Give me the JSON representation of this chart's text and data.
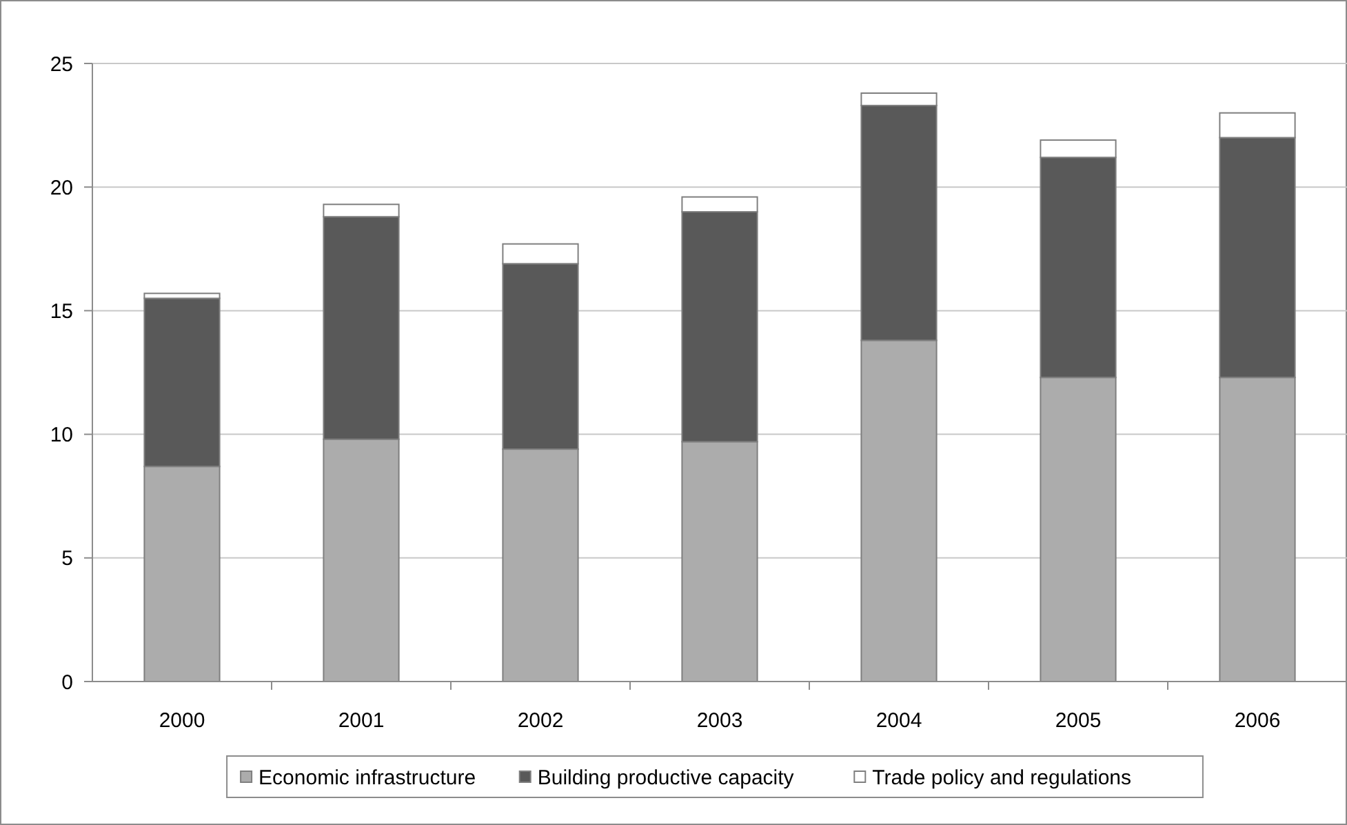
{
  "chart_data": {
    "type": "bar",
    "stacked": true,
    "categories": [
      "2000",
      "2001",
      "2002",
      "2003",
      "2004",
      "2005",
      "2006"
    ],
    "series": [
      {
        "name": "Economic infrastructure",
        "color": "#acacac",
        "values": [
          8.7,
          9.8,
          9.4,
          9.7,
          13.8,
          12.3,
          12.3
        ]
      },
      {
        "name": "Building productive capacity",
        "color": "#595959",
        "values": [
          6.8,
          9.0,
          7.5,
          9.3,
          9.5,
          8.9,
          9.7
        ]
      },
      {
        "name": "Trade policy and regulations",
        "color": "#ffffff",
        "values": [
          0.2,
          0.5,
          0.8,
          0.6,
          0.5,
          0.7,
          1.0
        ]
      }
    ],
    "ylim": [
      0,
      25
    ],
    "yticks": [
      0,
      5,
      10,
      15,
      20,
      25
    ],
    "grid": "y",
    "legend": "bottom"
  }
}
